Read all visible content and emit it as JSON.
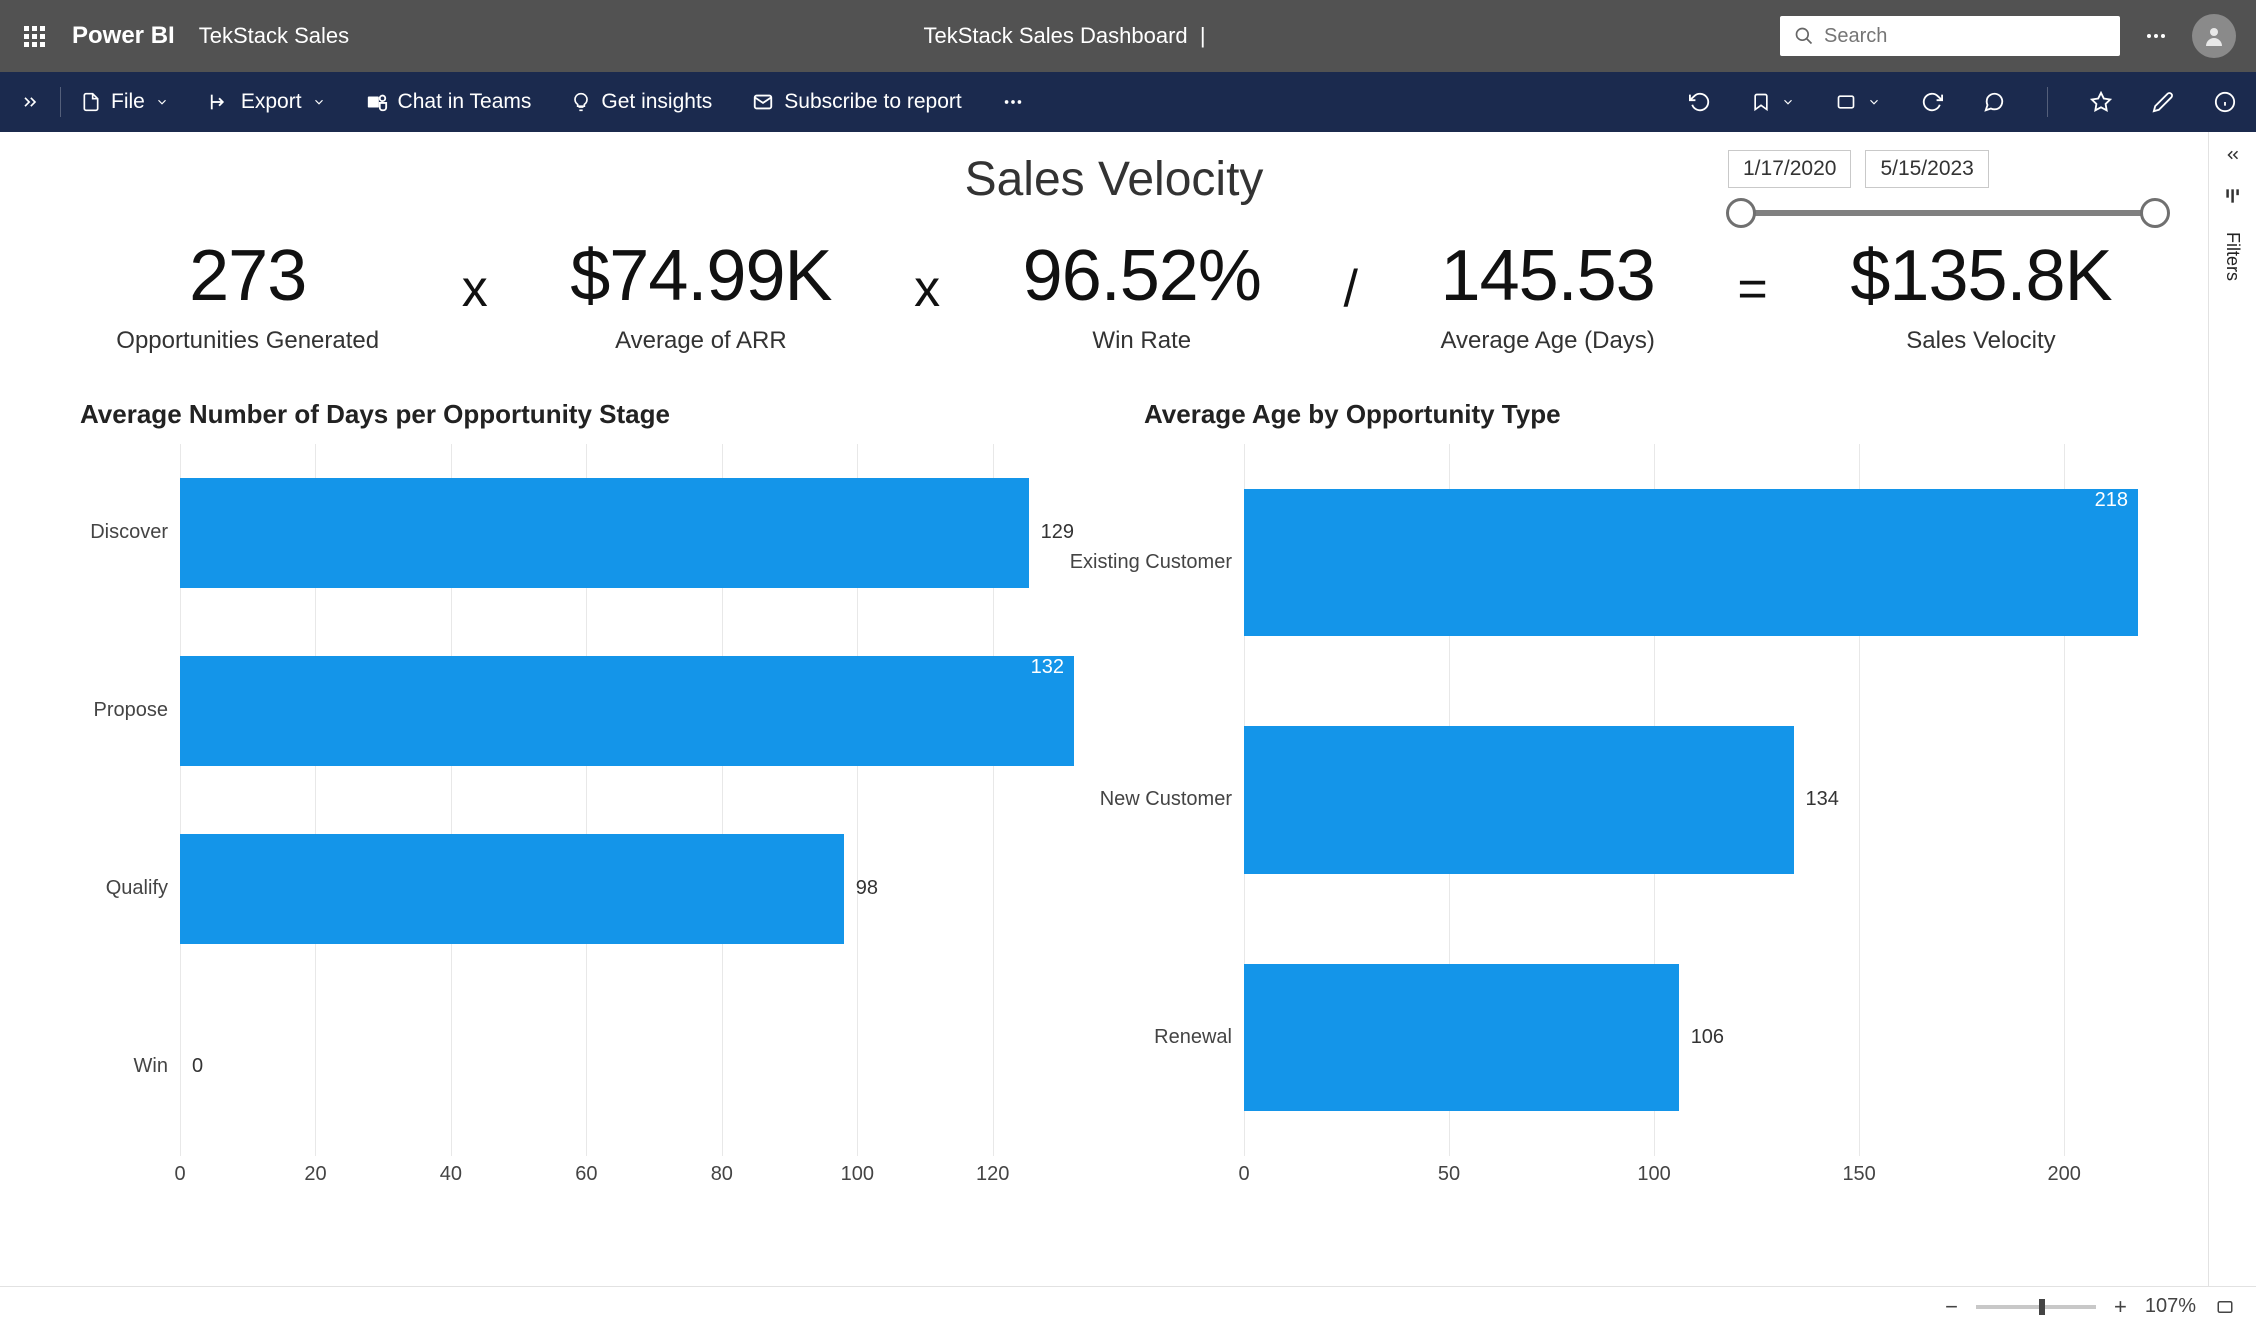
{
  "header": {
    "brand": "Power BI",
    "workspace": "TekStack Sales",
    "report_title": "TekStack Sales Dashboard",
    "search_placeholder": "Search"
  },
  "ribbon": {
    "file": "File",
    "export": "Export",
    "chat": "Chat in Teams",
    "insights": "Get insights",
    "subscribe": "Subscribe to report"
  },
  "dashboard": {
    "title": "Sales Velocity",
    "date_slicer": {
      "start": "1/17/2020",
      "end": "5/15/2023"
    },
    "kpis": [
      {
        "value": "273",
        "label": "Opportunities Generated"
      },
      {
        "value": "$74.99K",
        "label": "Average of ARR"
      },
      {
        "value": "96.52%",
        "label": "Win Rate"
      },
      {
        "value": "145.53",
        "label": "Average Age (Days)"
      },
      {
        "value": "$135.8K",
        "label": "Sales Velocity"
      }
    ],
    "operators": [
      "x",
      "x",
      "/",
      "="
    ],
    "chart1": {
      "title": "Average Number of Days per Opportunity Stage",
      "type": "bar-horizontal",
      "bar_color": "#1495e9",
      "grid_color": "#e8e8e8",
      "label_color": "#444444",
      "label_fontsize": 20,
      "xmin": 0,
      "xmax": 132,
      "xtick_step": 20,
      "xticks": [
        0,
        20,
        40,
        60,
        80,
        100,
        120
      ],
      "bar_thickness_ratio": 0.62,
      "row_count": 4,
      "bars": [
        {
          "label": "Discover",
          "value": 129,
          "value_position": "outside"
        },
        {
          "label": "Propose",
          "value": 132,
          "value_position": "inside"
        },
        {
          "label": "Qualify",
          "value": 98,
          "value_position": "outside"
        },
        {
          "label": "Win",
          "value": 0,
          "value_position": "outside"
        }
      ]
    },
    "chart2": {
      "title": "Average Age by Opportunity Type",
      "type": "bar-horizontal",
      "bar_color": "#1495e9",
      "grid_color": "#e8e8e8",
      "label_color": "#444444",
      "label_fontsize": 20,
      "xmin": 0,
      "xmax": 218,
      "xtick_step": 50,
      "xticks": [
        0,
        50,
        100,
        150,
        200
      ],
      "bar_thickness_ratio": 0.62,
      "row_count": 3,
      "bars": [
        {
          "label": "Existing Customer",
          "value": 218,
          "value_position": "inside"
        },
        {
          "label": "New Customer",
          "value": 134,
          "value_position": "outside"
        },
        {
          "label": "Renewal",
          "value": 106,
          "value_position": "outside"
        }
      ]
    }
  },
  "side_panel": {
    "filters_label": "Filters"
  },
  "footer": {
    "zoom_label": "107%",
    "zoom_position_pct": 55
  }
}
